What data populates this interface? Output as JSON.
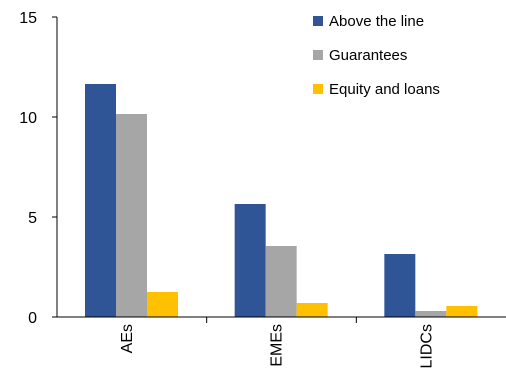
{
  "chart_data": {
    "type": "bar",
    "categories": [
      "AEs",
      "EMEs",
      "LIDCs"
    ],
    "series": [
      {
        "name": "Above the line",
        "color": "#2F5597",
        "values": [
          11.65,
          5.65,
          3.15
        ]
      },
      {
        "name": "Guarantees",
        "color": "#A6A6A6",
        "values": [
          10.15,
          3.55,
          0.3
        ]
      },
      {
        "name": "Equity and loans",
        "color": "#FFC000",
        "values": [
          1.25,
          0.7,
          0.55
        ]
      }
    ],
    "title": "",
    "xlabel": "",
    "ylabel": "",
    "ylim": [
      0,
      15
    ],
    "yticks": [
      0,
      5,
      10,
      15
    ],
    "grid": false,
    "legend": "top-right"
  }
}
